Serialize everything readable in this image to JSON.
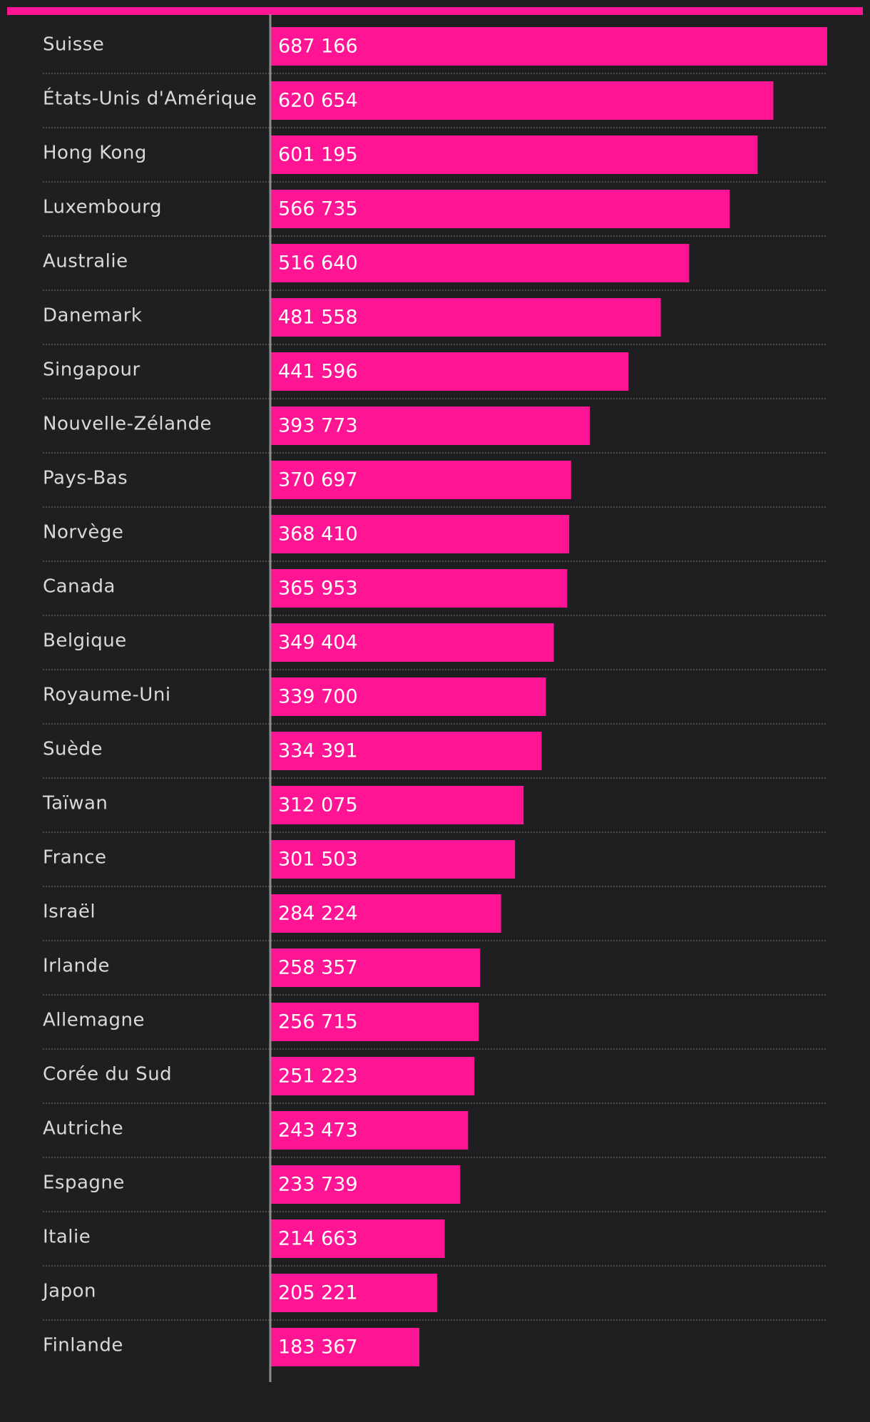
{
  "colors": {
    "background": "#1f1f21",
    "bar": "#ff1493",
    "accent": "#ff1493",
    "label": "#d9d9d9",
    "value_label": "#ffffff",
    "axis": "#8c8c8c",
    "separator": "#5a5a5a"
  },
  "chart_data": {
    "type": "bar",
    "orientation": "horizontal",
    "title": "",
    "xlabel": "",
    "ylabel": "",
    "xlim": [
      0,
      687166
    ],
    "grid": false,
    "legend": "none",
    "categories": [
      "Suisse",
      "États-Unis d'Amérique",
      "Hong Kong",
      "Luxembourg",
      "Australie",
      "Danemark",
      "Singapour",
      "Nouvelle-Zélande",
      "Pays-Bas",
      "Norvège",
      "Canada",
      "Belgique",
      "Royaume-Uni",
      "Suède",
      "Taïwan",
      "France",
      "Israël",
      "Irlande",
      "Allemagne",
      "Corée du Sud",
      "Autriche",
      "Espagne",
      "Italie",
      "Japon",
      "Finlande"
    ],
    "values": [
      687166,
      620654,
      601195,
      566735,
      516640,
      481558,
      441596,
      393773,
      370697,
      368410,
      365953,
      349404,
      339700,
      334391,
      312075,
      301503,
      284224,
      258357,
      256715,
      251223,
      243473,
      233739,
      214663,
      205221,
      183367
    ],
    "value_labels": [
      "687 166",
      "620 654",
      "601 195",
      "566 735",
      "516 640",
      "481 558",
      "441 596",
      "393 773",
      "370 697",
      "368 410",
      "365 953",
      "349 404",
      "339 700",
      "334 391",
      "312 075",
      "301 503",
      "284 224",
      "258 357",
      "256 715",
      "251 223",
      "243 473",
      "233 739",
      "214 663",
      "205 221",
      "183 367"
    ]
  }
}
